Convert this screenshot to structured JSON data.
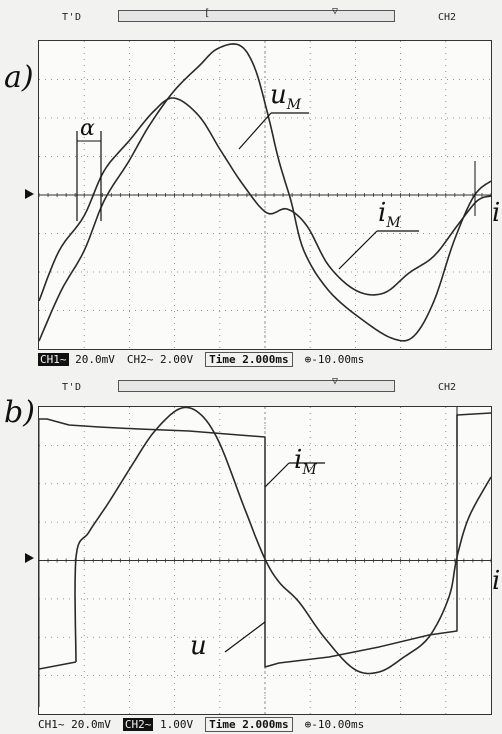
{
  "panel_a": {
    "label": "a)",
    "trigger_header": "T'D",
    "trigger_right": "CH2",
    "curve_labels": {
      "u_main": "u",
      "u_sub": "M",
      "i_main": "i",
      "i_sub": "M"
    },
    "angle_label": "α",
    "trailing_label": "i",
    "status": {
      "ch1_tag": "CH1~",
      "ch1_value": "20.0mV",
      "ch2_text": "CH2~  2.00V",
      "time_text": "Time 2.000ms",
      "offset_text": "-10.00ms"
    }
  },
  "panel_b": {
    "label": "b)",
    "trigger_header": "T'D",
    "trigger_right": "CH2",
    "curve_labels": {
      "i_main": "i",
      "i_sub": "M",
      "u_main": "u"
    },
    "trailing_label": "i",
    "status": {
      "ch1_text": "CH1~ 20.0mV",
      "ch2_tag": "CH2~",
      "ch2_value": "1.00V",
      "time_text": "Time 2.000ms",
      "offset_text": "-10.00ms"
    }
  },
  "colors": {
    "trace": "#2a2a2a",
    "grid": "#777777",
    "background": "#fbfbf9"
  }
}
